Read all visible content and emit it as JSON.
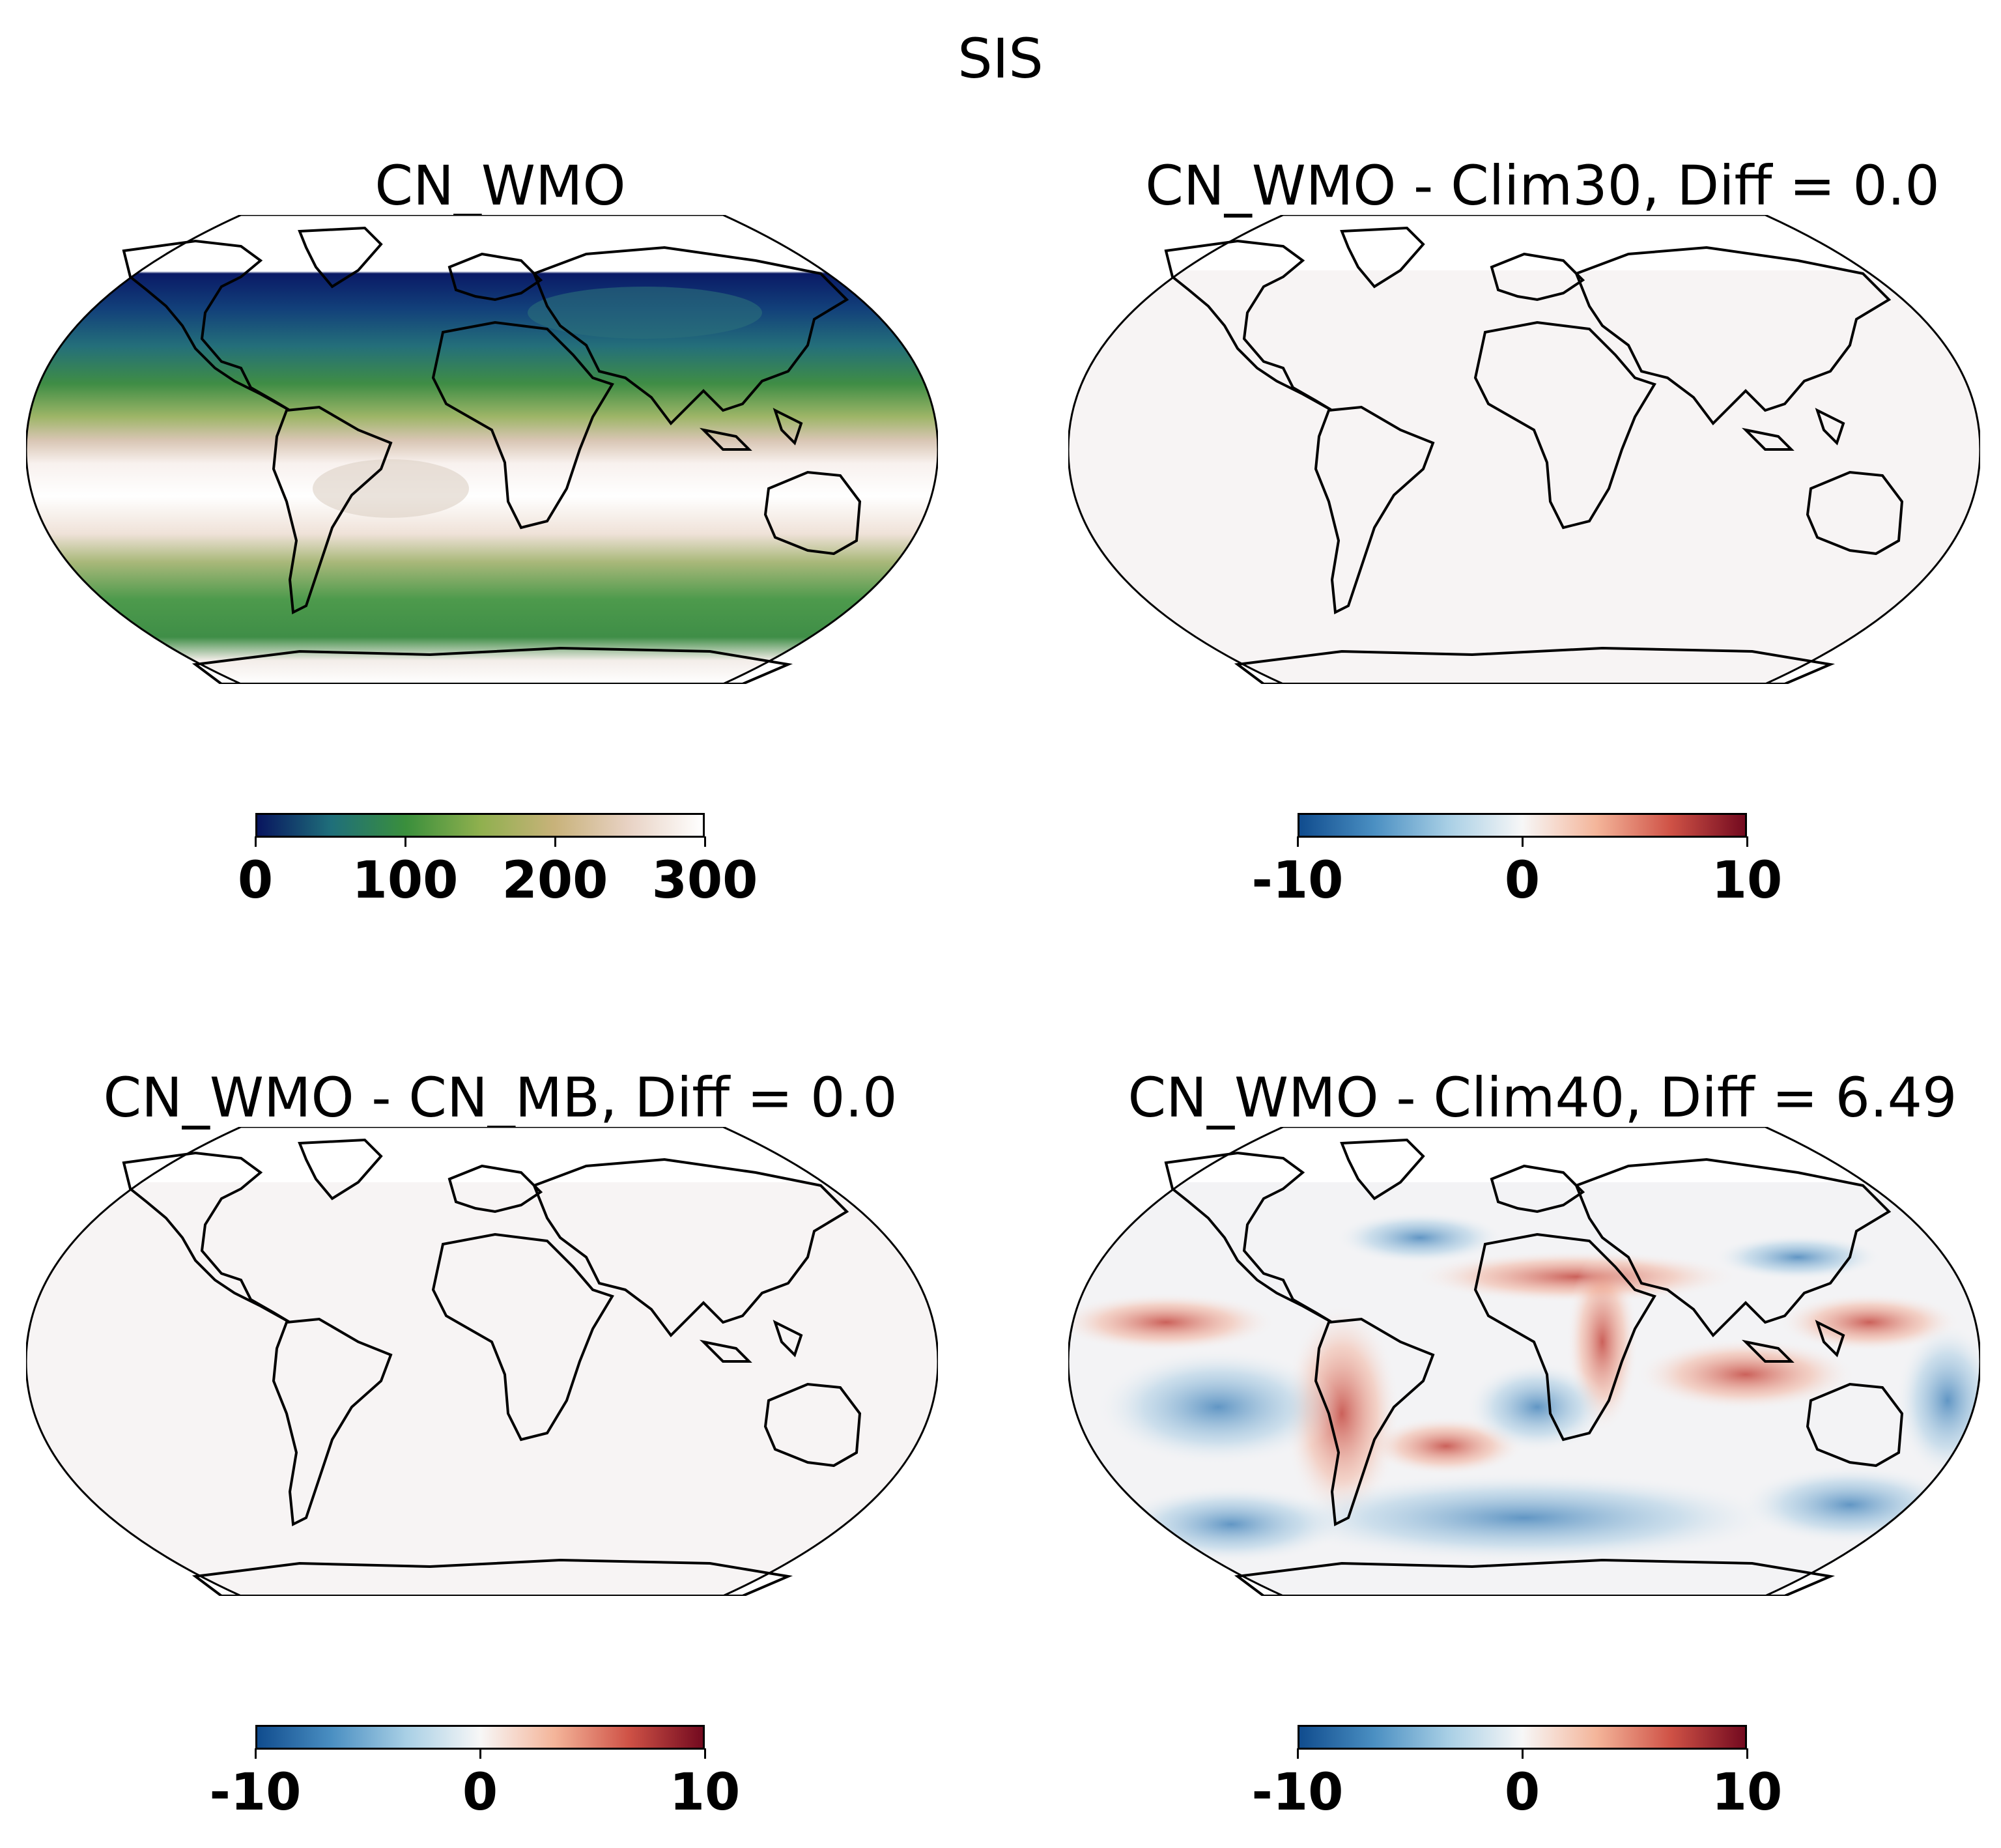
{
  "figure": {
    "suptitle": "SIS"
  },
  "panels": [
    {
      "title": "CN_WMO",
      "colormap": "gist_earth",
      "colorbar": {
        "ticks": [
          "0",
          "100",
          "200",
          "300"
        ],
        "range": [
          0,
          300
        ],
        "colors": [
          "#08155f",
          "#1f6f7a",
          "#3a8f3c",
          "#8fb04e",
          "#c8b27a",
          "#e8d2c4",
          "#ffffff"
        ]
      }
    },
    {
      "title": "CN_WMO - Clim30, Diff = 0.0",
      "colormap": "RdBu_r",
      "colorbar": {
        "ticks": [
          "-10",
          "0",
          "10"
        ],
        "range": [
          -10,
          10
        ],
        "colors": [
          "#104c8e",
          "#4a8fc2",
          "#a8cfe5",
          "#f7f7f7",
          "#f4b59a",
          "#cf5246",
          "#730a1f"
        ]
      }
    },
    {
      "title": "CN_WMO - CN_MB, Diff = 0.0",
      "colormap": "RdBu_r",
      "colorbar": {
        "ticks": [
          "-10",
          "0",
          "10"
        ],
        "range": [
          -10,
          10
        ],
        "colors": [
          "#104c8e",
          "#4a8fc2",
          "#a8cfe5",
          "#f7f7f7",
          "#f4b59a",
          "#cf5246",
          "#730a1f"
        ]
      }
    },
    {
      "title": "CN_WMO - Clim40, Diff = 6.49",
      "colormap": "RdBu_r",
      "colorbar": {
        "ticks": [
          "-10",
          "0",
          "10"
        ],
        "range": [
          -10,
          10
        ],
        "colors": [
          "#104c8e",
          "#4a8fc2",
          "#a8cfe5",
          "#f7f7f7",
          "#f4b59a",
          "#cf5246",
          "#730a1f"
        ]
      }
    }
  ]
}
